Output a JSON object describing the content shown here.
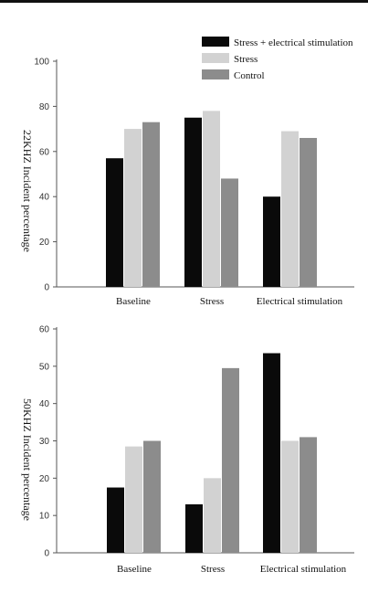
{
  "colors": {
    "stress_electrical": "#0a0a0a",
    "stress": "#d2d2d2",
    "control": "#8c8c8c",
    "axis": "#555555"
  },
  "chart_data": [
    {
      "type": "bar",
      "title": "",
      "xlabel": "",
      "ylabel": "22KHZ Incident percentage",
      "categories": [
        "Baseline",
        "Stress",
        "Electrical stimulation"
      ],
      "ylim": [
        0,
        100
      ],
      "yticks": [
        0,
        20,
        40,
        60,
        80,
        100
      ],
      "grid": false,
      "legend_position": "top-right",
      "series": [
        {
          "name": "Stress + electrical stimulation",
          "values": [
            57,
            75,
            40
          ]
        },
        {
          "name": "Stress",
          "values": [
            70,
            78,
            69
          ]
        },
        {
          "name": "Control",
          "values": [
            73,
            48,
            66
          ]
        }
      ]
    },
    {
      "type": "bar",
      "title": "",
      "xlabel": "",
      "ylabel": "50KHZ Incident percentage",
      "categories": [
        "Baseline",
        "Stress",
        "Electrical stimulation"
      ],
      "ylim": [
        0,
        60
      ],
      "yticks": [
        0,
        10,
        20,
        30,
        40,
        50,
        60
      ],
      "grid": false,
      "series": [
        {
          "name": "Stress + electrical stimulation",
          "values": [
            17.5,
            13,
            53.5
          ]
        },
        {
          "name": "Stress",
          "values": [
            28.5,
            20,
            30
          ]
        },
        {
          "name": "Control",
          "values": [
            30,
            49.5,
            31
          ]
        }
      ]
    }
  ]
}
